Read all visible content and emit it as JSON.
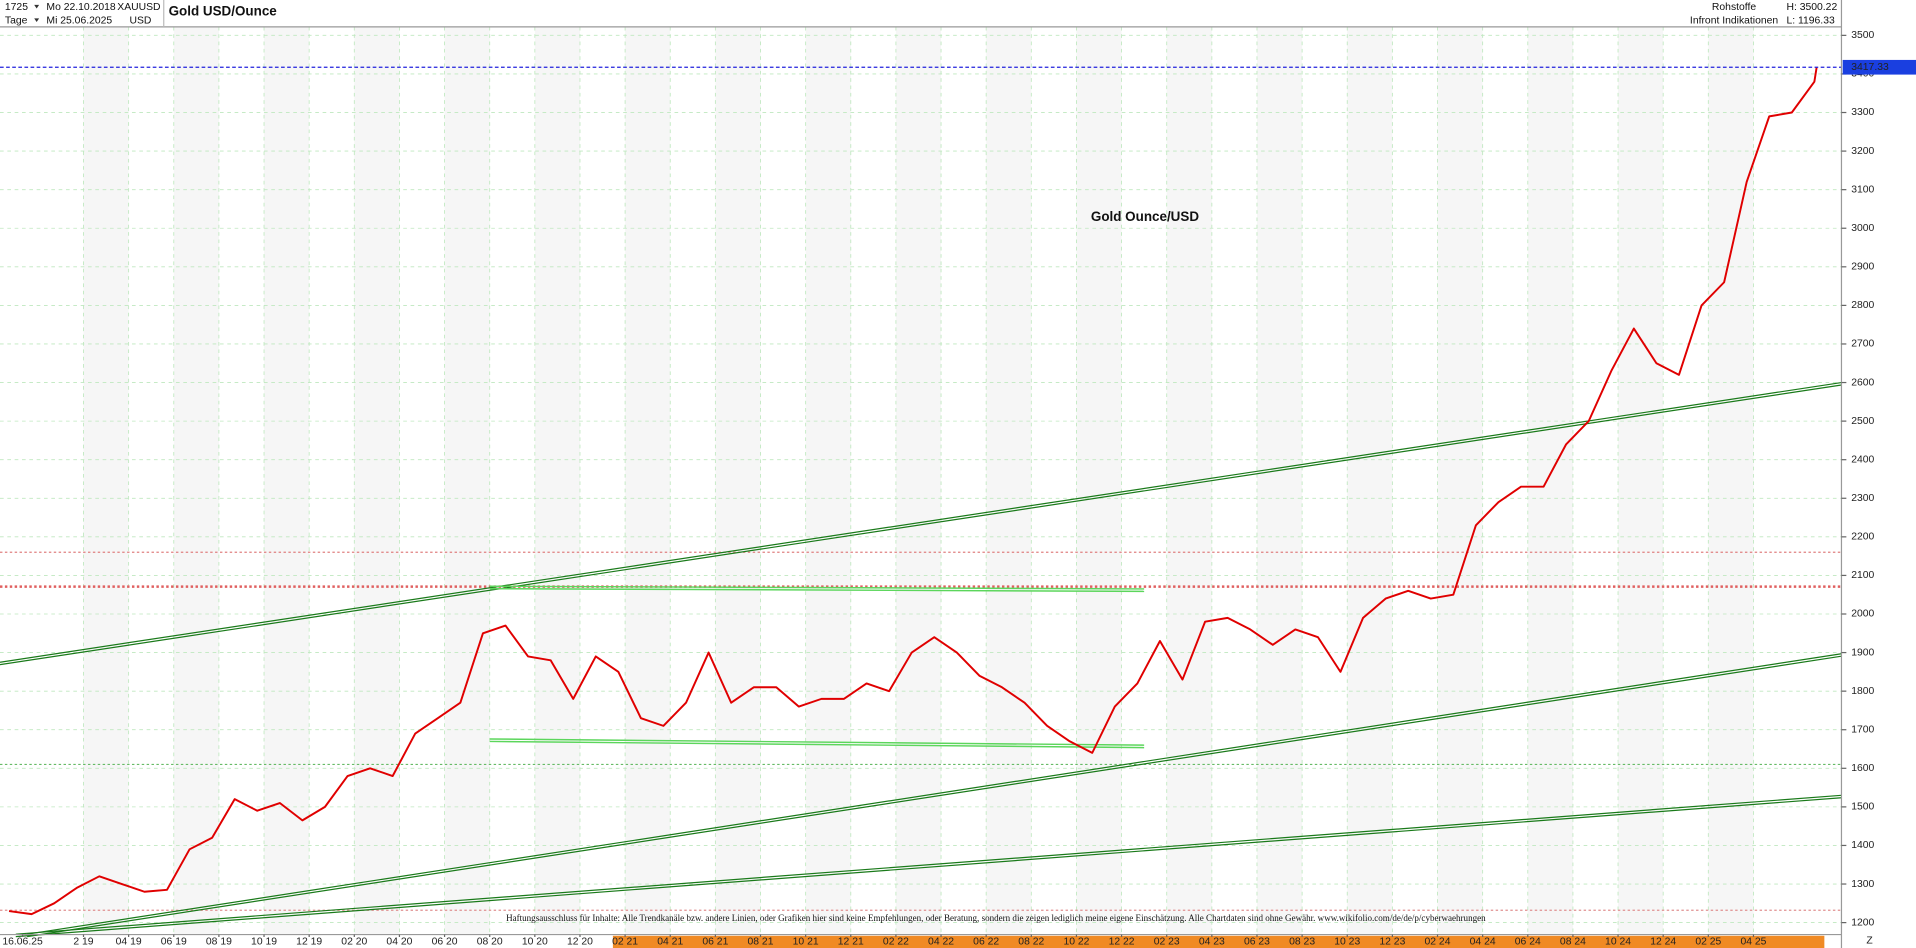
{
  "header": {
    "left_top": "1725",
    "date_from": "Mo 22.10.2018",
    "symbol": "XAUUSD",
    "title": "Gold USD/Ounce",
    "left_bottom": "Tage",
    "date_to": "Mi 25.06.2025",
    "currency": "USD",
    "category": "Rohstoffe",
    "high": "H: 3500.22",
    "source": "Infront Indikationen",
    "low": "L: 1196.33"
  },
  "chart_data": {
    "type": "line",
    "annotation": "Gold Ounce/USD",
    "disclaimer": "Haftungsausschluss für Inhalte: Alle Trendkanäle bzw. andere Linien, oder Grafiken hier sind keine Empfehlungen, oder Beratung, sondern die zeigen lediglich meine eigene Einschätzung. Alle Chartdaten sind ohne Gewähr. www.wikifolio.com/de/de/p/cyberwaehrungen",
    "end_marker": "Z",
    "x": [
      0,
      1,
      2,
      3,
      4,
      5,
      6,
      7,
      8,
      9,
      10,
      11,
      12,
      13,
      14,
      15,
      16,
      17,
      18,
      19,
      20,
      21,
      22,
      23,
      24,
      25,
      26,
      27,
      28,
      29,
      30,
      31,
      32,
      33,
      34,
      35,
      36,
      37,
      38,
      39,
      40,
      41,
      42,
      43,
      44,
      45,
      46,
      47,
      48,
      49,
      50,
      51,
      52,
      53,
      54,
      55,
      56,
      57,
      58,
      59,
      60,
      61,
      62,
      63,
      64,
      65,
      66,
      67,
      68,
      69,
      70,
      71,
      72,
      73,
      74,
      75,
      76,
      77,
      78,
      79,
      80,
      80.1
    ],
    "series": [
      {
        "name": "XAUUSD",
        "color": "#e00000",
        "values": [
          1230,
          1222,
          1250,
          1290,
          1320,
          1300,
          1280,
          1285,
          1390,
          1420,
          1520,
          1490,
          1510,
          1465,
          1500,
          1580,
          1600,
          1580,
          1690,
          1730,
          1770,
          1950,
          1970,
          1890,
          1880,
          1780,
          1890,
          1850,
          1730,
          1710,
          1770,
          1900,
          1770,
          1810,
          1810,
          1760,
          1780,
          1780,
          1820,
          1800,
          1900,
          1940,
          1900,
          1840,
          1810,
          1770,
          1710,
          1670,
          1640,
          1760,
          1820,
          1930,
          1830,
          1980,
          1990,
          1960,
          1920,
          1960,
          1940,
          1850,
          1990,
          2040,
          2060,
          2040,
          2050,
          2230,
          2290,
          2330,
          2330,
          2440,
          2500,
          2630,
          2740,
          2650,
          2620,
          2800,
          2860,
          3120,
          3290,
          3300,
          3380,
          3417.33
        ]
      }
    ],
    "last_price": 3417.33,
    "ylim": [
      1169,
      3522
    ],
    "yticks": [
      1200,
      1300,
      1400,
      1500,
      1600,
      1700,
      1800,
      1900,
      2000,
      2100,
      2200,
      2300,
      2400,
      2500,
      2600,
      2700,
      2800,
      2900,
      3000,
      3100,
      3200,
      3300,
      3400,
      3500
    ],
    "xlim": [
      -0.4,
      81.2
    ],
    "xticks": [
      {
        "value": 0.6,
        "label": "16.06.25"
      },
      {
        "value": 3.3,
        "label": "2 19"
      },
      {
        "value": 5.3,
        "label": "04 19"
      },
      {
        "value": 7.3,
        "label": "06 19"
      },
      {
        "value": 9.3,
        "label": "08 19"
      },
      {
        "value": 11.3,
        "label": "10 19"
      },
      {
        "value": 13.3,
        "label": "12 19"
      },
      {
        "value": 15.3,
        "label": "02 20"
      },
      {
        "value": 17.3,
        "label": "04 20"
      },
      {
        "value": 19.3,
        "label": "06 20"
      },
      {
        "value": 21.3,
        "label": "08 20"
      },
      {
        "value": 23.3,
        "label": "10 20"
      },
      {
        "value": 25.3,
        "label": "12 20"
      },
      {
        "value": 27.3,
        "label": "02 21"
      },
      {
        "value": 29.3,
        "label": "04 21"
      },
      {
        "value": 31.3,
        "label": "06 21"
      },
      {
        "value": 33.3,
        "label": "08 21"
      },
      {
        "value": 35.3,
        "label": "10 21"
      },
      {
        "value": 37.3,
        "label": "12 21"
      },
      {
        "value": 39.3,
        "label": "02 22"
      },
      {
        "value": 41.3,
        "label": "04 22"
      },
      {
        "value": 43.3,
        "label": "06 22"
      },
      {
        "value": 45.3,
        "label": "08 22"
      },
      {
        "value": 47.3,
        "label": "10 22"
      },
      {
        "value": 49.3,
        "label": "12 22"
      },
      {
        "value": 51.3,
        "label": "02 23"
      },
      {
        "value": 53.3,
        "label": "04 23"
      },
      {
        "value": 55.3,
        "label": "06 23"
      },
      {
        "value": 57.3,
        "label": "08 23"
      },
      {
        "value": 59.3,
        "label": "10 23"
      },
      {
        "value": 61.3,
        "label": "12 23"
      },
      {
        "value": 63.3,
        "label": "02 24"
      },
      {
        "value": 65.3,
        "label": "04 24"
      },
      {
        "value": 67.3,
        "label": "06 24"
      },
      {
        "value": 69.3,
        "label": "08 24"
      },
      {
        "value": 71.3,
        "label": "10 24"
      },
      {
        "value": 73.3,
        "label": "12 24"
      },
      {
        "value": 75.3,
        "label": "02 25"
      },
      {
        "value": 77.3,
        "label": "04 25"
      }
    ],
    "grid": true,
    "trendlines": [
      {
        "color": "#1a7a1a",
        "points": [
          [
            -0.4,
            1875
          ],
          [
            81.2,
            2600
          ]
        ]
      },
      {
        "color": "#1a7a1a",
        "points": [
          [
            0.8,
            1170
          ],
          [
            81.2,
            1897
          ]
        ]
      },
      {
        "color": "#1a7a1a",
        "points": [
          [
            0.3,
            1170
          ],
          [
            81.2,
            1530
          ]
        ]
      },
      {
        "color": "#5cd65c",
        "points": [
          [
            21.3,
            2072
          ],
          [
            50.3,
            2065
          ]
        ]
      },
      {
        "color": "#5cd65c",
        "points": [
          [
            21.3,
            1676
          ],
          [
            50.3,
            1660
          ]
        ]
      }
    ],
    "ref_lines": [
      {
        "value": 2160,
        "color": "#e08080"
      },
      {
        "value": 2071,
        "color": "#e06060"
      },
      {
        "value": 1610,
        "color": "#66bb66"
      },
      {
        "value": 1232,
        "color": "#e09090"
      }
    ]
  }
}
